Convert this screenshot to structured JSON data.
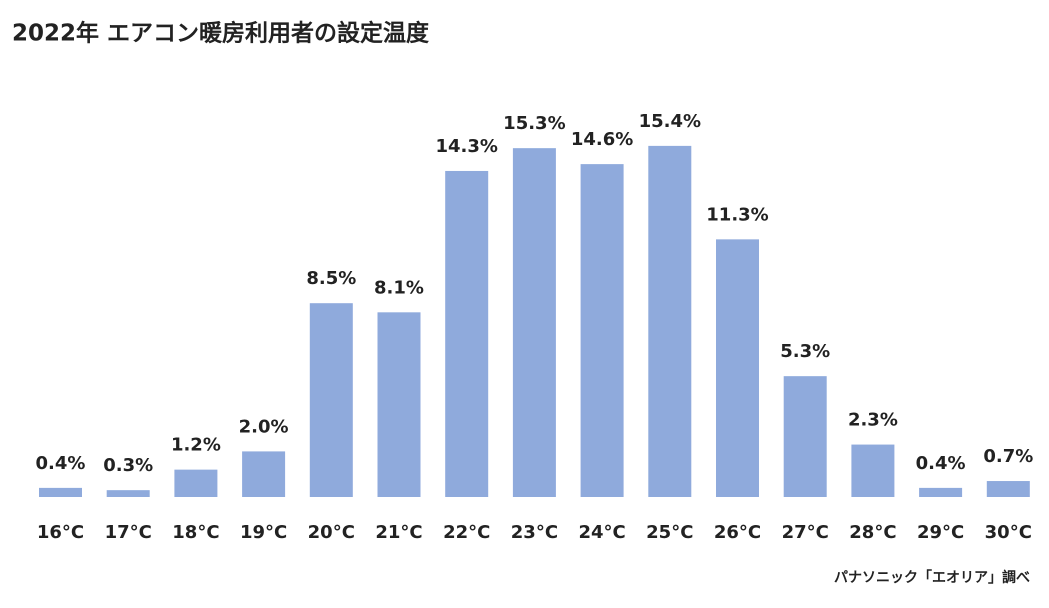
{
  "chart_data": {
    "type": "bar",
    "title": "2022年 エアコン暖房利用者の設定温度",
    "categories": [
      "16°C",
      "17°C",
      "18°C",
      "19°C",
      "20°C",
      "21°C",
      "22°C",
      "23°C",
      "24°C",
      "25°C",
      "26°C",
      "27°C",
      "28°C",
      "29°C",
      "30°C"
    ],
    "values": [
      0.4,
      0.3,
      1.2,
      2.0,
      8.5,
      8.1,
      14.3,
      15.3,
      14.6,
      15.4,
      11.3,
      5.3,
      2.3,
      0.4,
      0.7
    ],
    "value_labels": [
      "0.4%",
      "0.3%",
      "1.2%",
      "2.0%",
      "8.5%",
      "8.1%",
      "14.3%",
      "15.3%",
      "14.6%",
      "15.4%",
      "11.3%",
      "5.3%",
      "2.3%",
      "0.4%",
      "0.7%"
    ],
    "color": "#8faadc",
    "source": "パナソニック「エオリア」調べ"
  }
}
